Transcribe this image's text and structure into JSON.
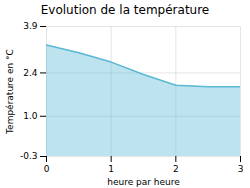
{
  "chart_data": {
    "type": "area",
    "title": "Evolution de la température",
    "xlabel": "heure par heure",
    "ylabel": "Température en °C",
    "x": [
      0,
      0.5,
      1.0,
      1.5,
      2.0,
      2.5,
      3.0
    ],
    "values": [
      3.3,
      3.05,
      2.75,
      2.35,
      2.0,
      1.95,
      1.95
    ],
    "color": "#5bb8d4",
    "xlim": [
      0,
      3
    ],
    "ylim": [
      -0.3,
      3.9
    ],
    "xticks": [
      0,
      1,
      2,
      3
    ],
    "yticks": [
      -0.3,
      {
        "value": 1.0,
        "label": "1.0"
      },
      2.4,
      3.9
    ],
    "grid": true
  }
}
